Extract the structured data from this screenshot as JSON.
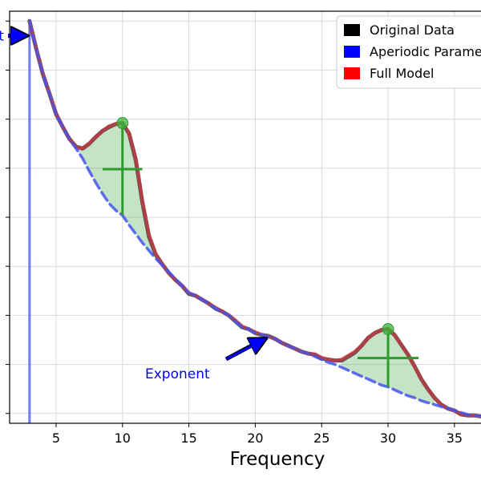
{
  "chart_data": {
    "type": "line",
    "xlabel": "Frequency",
    "xlim": [
      1.5,
      37
    ],
    "ylim": [
      -0.6,
      3.6
    ],
    "grid": true,
    "x_ticks": [
      5,
      10,
      15,
      20,
      25,
      30,
      35
    ],
    "x_tick_labels": [
      "5",
      "10",
      "15",
      "20",
      "25",
      "30",
      "35"
    ],
    "y_ticks": [
      -0.5,
      0.0,
      0.5,
      1.0,
      1.5,
      2.0,
      2.5,
      3.0,
      3.5
    ],
    "legend": {
      "placement": "top-right",
      "entries": [
        {
          "name": "Original Data",
          "color": "#000000"
        },
        {
          "name": "Aperiodic Parameters",
          "color": "#0000ff"
        },
        {
          "name": "Full Model",
          "color": "#ff0000"
        }
      ]
    },
    "annotations": [
      {
        "text": "Offset",
        "color": "#0000ff",
        "target": [
          3.0,
          3.35
        ]
      },
      {
        "text": "Exponent",
        "color": "#0000ff",
        "target": [
          21.0,
          0.3
        ]
      }
    ],
    "offset_line": {
      "x": 3.0,
      "y_top": 3.5
    },
    "peaks": [
      {
        "center": 10,
        "peak_power": 2.46,
        "aperiodic_power": 1.52,
        "half_bandwidth": 1.5
      },
      {
        "center": 30,
        "peak_power": 0.36,
        "aperiodic_power": -0.23,
        "half_bandwidth": 2.3
      }
    ],
    "series": [
      {
        "name": "Original Data",
        "color": "#555555",
        "x": [
          3,
          3.5,
          4,
          4.5,
          5,
          5.5,
          6,
          6.5,
          7,
          7.5,
          8,
          8.5,
          9,
          9.5,
          10,
          10.5,
          11,
          11.5,
          12,
          12.5,
          13,
          13.5,
          14,
          14.5,
          15,
          15.5,
          16,
          16.5,
          17,
          17.5,
          18,
          18.5,
          19,
          19.5,
          20,
          20.5,
          21,
          21.5,
          22,
          22.5,
          23,
          23.5,
          24,
          24.5,
          25,
          25.5,
          26,
          26.5,
          27,
          27.5,
          28,
          28.5,
          29,
          29.5,
          30,
          30.5,
          31,
          31.5,
          32,
          32.5,
          33,
          33.5,
          34,
          34.5,
          35,
          35.5,
          36,
          36.5,
          37
        ],
        "values": [
          3.5,
          3.22,
          2.96,
          2.76,
          2.55,
          2.42,
          2.3,
          2.22,
          2.2,
          2.25,
          2.32,
          2.38,
          2.42,
          2.45,
          2.46,
          2.35,
          2.08,
          1.65,
          1.3,
          1.12,
          1.02,
          0.93,
          0.86,
          0.8,
          0.72,
          0.7,
          0.66,
          0.62,
          0.57,
          0.54,
          0.5,
          0.44,
          0.38,
          0.36,
          0.32,
          0.3,
          0.29,
          0.26,
          0.22,
          0.19,
          0.16,
          0.13,
          0.11,
          0.1,
          0.06,
          0.05,
          0.04,
          0.04,
          0.08,
          0.12,
          0.19,
          0.27,
          0.32,
          0.35,
          0.36,
          0.3,
          0.2,
          0.1,
          -0.02,
          -0.15,
          -0.25,
          -0.34,
          -0.41,
          -0.45,
          -0.47,
          -0.51,
          -0.52,
          -0.52,
          -0.53
        ]
      },
      {
        "name": "Full Model",
        "color": "#ff0000",
        "x": [
          3,
          3.5,
          4,
          4.5,
          5,
          5.5,
          6,
          6.5,
          7,
          7.5,
          8,
          8.5,
          9,
          9.5,
          10,
          10.5,
          11,
          11.5,
          12,
          12.5,
          13,
          13.5,
          14,
          14.5,
          15,
          15.5,
          16,
          16.5,
          17,
          17.5,
          18,
          18.5,
          19,
          19.5,
          20,
          20.5,
          21,
          21.5,
          22,
          22.5,
          23,
          23.5,
          24,
          24.5,
          25,
          25.5,
          26,
          26.5,
          27,
          27.5,
          28,
          28.5,
          29,
          29.5,
          30,
          30.5,
          31,
          31.5,
          32,
          32.5,
          33,
          33.5,
          34,
          34.5,
          35,
          35.5,
          36,
          36.5,
          37
        ],
        "values": [
          3.5,
          3.22,
          2.97,
          2.76,
          2.56,
          2.42,
          2.3,
          2.22,
          2.2,
          2.25,
          2.32,
          2.38,
          2.43,
          2.45,
          2.46,
          2.36,
          2.1,
          1.67,
          1.32,
          1.13,
          1.02,
          0.93,
          0.86,
          0.8,
          0.73,
          0.7,
          0.66,
          0.62,
          0.58,
          0.54,
          0.5,
          0.45,
          0.39,
          0.36,
          0.33,
          0.3,
          0.29,
          0.26,
          0.22,
          0.19,
          0.16,
          0.13,
          0.11,
          0.1,
          0.07,
          0.05,
          0.04,
          0.05,
          0.09,
          0.13,
          0.19,
          0.27,
          0.32,
          0.35,
          0.36,
          0.3,
          0.2,
          0.1,
          -0.02,
          -0.15,
          -0.25,
          -0.34,
          -0.41,
          -0.45,
          -0.47,
          -0.51,
          -0.52,
          -0.52,
          -0.53
        ]
      },
      {
        "name": "Aperiodic Parameters",
        "color": "#4455ee",
        "x": [
          3,
          3.5,
          4,
          4.5,
          5,
          5.5,
          6,
          6.5,
          7,
          7.5,
          8,
          8.5,
          9,
          9.5,
          10,
          10.5,
          11,
          11.5,
          12,
          12.5,
          13,
          13.5,
          14,
          14.5,
          15,
          15.5,
          16,
          16.5,
          17,
          17.5,
          18,
          18.5,
          19,
          19.5,
          20,
          20.5,
          21,
          21.5,
          22,
          22.5,
          23,
          23.5,
          24,
          24.5,
          25,
          25.5,
          26,
          26.5,
          27,
          27.5,
          28,
          28.5,
          29,
          29.5,
          30,
          30.5,
          31,
          31.5,
          32,
          32.5,
          33,
          33.5,
          34,
          34.5,
          35,
          35.5,
          36,
          36.5,
          37
        ],
        "values": [
          3.5,
          3.22,
          2.96,
          2.76,
          2.55,
          2.42,
          2.3,
          2.2,
          2.1,
          1.97,
          1.85,
          1.74,
          1.64,
          1.57,
          1.52,
          1.42,
          1.33,
          1.24,
          1.16,
          1.08,
          1.01,
          0.94,
          0.87,
          0.8,
          0.73,
          0.7,
          0.66,
          0.62,
          0.57,
          0.54,
          0.5,
          0.44,
          0.38,
          0.36,
          0.32,
          0.3,
          0.29,
          0.26,
          0.22,
          0.19,
          0.16,
          0.13,
          0.11,
          0.08,
          0.05,
          0.02,
          0.0,
          -0.03,
          -0.06,
          -0.09,
          -0.12,
          -0.15,
          -0.18,
          -0.21,
          -0.23,
          -0.26,
          -0.29,
          -0.32,
          -0.34,
          -0.37,
          -0.39,
          -0.41,
          -0.43,
          -0.45,
          -0.47,
          -0.49,
          -0.51,
          -0.52,
          -0.53
        ]
      }
    ]
  }
}
